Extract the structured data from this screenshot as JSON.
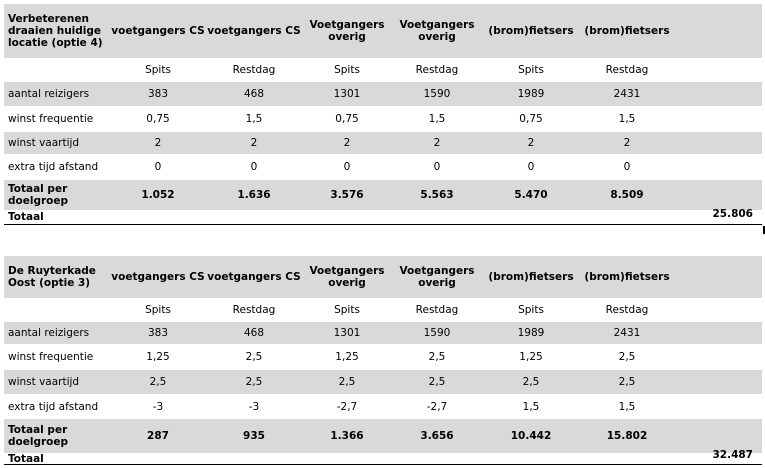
{
  "tables": [
    {
      "title": "Verbeterenen draaien huidige locatie (optie 4)",
      "columns": [
        "voetgangers CS",
        "voetgangers CS",
        "Voetgangers overig",
        "Voetgangers overig",
        "(brom)fietsers",
        "(brom)fietsers"
      ],
      "periods": [
        "Spits",
        "Restdag",
        "Spits",
        "Restdag",
        "Spits",
        "Restdag"
      ],
      "rows": [
        {
          "label": "aantal reizigers",
          "values": [
            "383",
            "468",
            "1301",
            "1590",
            "1989",
            "2431"
          ]
        },
        {
          "label": "winst frequentie",
          "values": [
            "0,75",
            "1,5",
            "0,75",
            "1,5",
            "0,75",
            "1,5"
          ]
        },
        {
          "label": "winst vaartijd",
          "values": [
            "2",
            "2",
            "2",
            "2",
            "2",
            "2"
          ]
        },
        {
          "label": "extra tijd afstand",
          "values": [
            "0",
            "0",
            "0",
            "0",
            "0",
            "0"
          ]
        }
      ],
      "total_per_group": {
        "label": "Totaal per doelgroep",
        "values": [
          "1.052",
          "1.636",
          "3.576",
          "5.563",
          "5.470",
          "8.509"
        ]
      },
      "total": {
        "label": "Totaal",
        "value": "25.806"
      }
    },
    {
      "title": "De Ruyterkade Oost (optie 3)",
      "columns": [
        "voetgangers CS",
        "voetgangers CS",
        "Voetgangers overig",
        "Voetgangers overig",
        "(brom)fietsers",
        "(brom)fietsers"
      ],
      "periods": [
        "Spits",
        "Restdag",
        "Spits",
        "Restdag",
        "Spits",
        "Restdag"
      ],
      "rows": [
        {
          "label": "aantal reizigers",
          "values": [
            "383",
            "468",
            "1301",
            "1590",
            "1989",
            "2431"
          ]
        },
        {
          "label": "winst frequentie",
          "values": [
            "1,25",
            "2,5",
            "1,25",
            "2,5",
            "1,25",
            "2,5"
          ]
        },
        {
          "label": "winst vaartijd",
          "values": [
            "2,5",
            "2,5",
            "2,5",
            "2,5",
            "2,5",
            "2,5"
          ]
        },
        {
          "label": "extra tijd afstand",
          "values": [
            "-3",
            "-3",
            "-2,7",
            "-2,7",
            "1,5",
            "1,5"
          ]
        }
      ],
      "total_per_group": {
        "label": "Totaal per doelgroep",
        "values": [
          "287",
          "935",
          "1.366",
          "3.656",
          "10.442",
          "15.802"
        ]
      },
      "total": {
        "label": "Totaal",
        "value": "32.487"
      }
    }
  ]
}
